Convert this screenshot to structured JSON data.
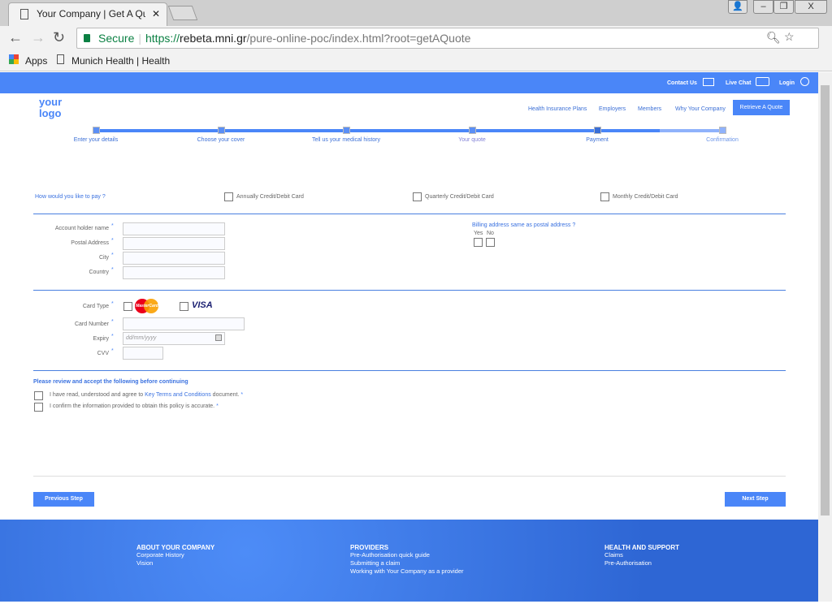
{
  "browser": {
    "tab_title": "Your Company | Get A Quote",
    "url_secure": "Secure",
    "url_scheme": "https://",
    "url_host": "rebeta.mni.gr",
    "url_path": "/pure-online-poc/index.html?root=getAQuote",
    "bookmarks": [
      "Apps",
      "Munich Health | Health"
    ]
  },
  "topbar": {
    "contact": "Contact Us",
    "chat": "Live Chat",
    "login": "Login"
  },
  "logo": {
    "line1": "your",
    "line2": "logo"
  },
  "nav": {
    "items": [
      "Health Insurance Plans",
      "Employers",
      "Members",
      "Why Your Company"
    ],
    "cta": "Retrieve A Quote"
  },
  "progress": {
    "steps": [
      "Enter your details",
      "Choose your cover",
      "Tell us your medical history",
      "Your quote",
      "Payment",
      "Confirmation"
    ],
    "current": "Payment"
  },
  "payment": {
    "question": "How would you like to pay ?",
    "options": [
      "Annually Credit/Debit Card",
      "Quarterly Credit/Debit Card",
      "Monthly Credit/Debit Card"
    ]
  },
  "address": {
    "fields": [
      "Account holder name",
      "Postal Address",
      "City",
      "Country"
    ],
    "billing_question": "Billing address same as postal address ?",
    "yes": "Yes",
    "no": "No"
  },
  "card": {
    "type_label": "Card Type",
    "mastercard": "MasterCard",
    "visa": "VISA",
    "number_label": "Card Number",
    "expiry_label": "Expiry",
    "expiry_placeholder": "dd/mm/yyyy",
    "cvv_label": "CVV"
  },
  "terms": {
    "heading": "Please review and accept the following before continuing",
    "t1_pre": "I have read, understood and agree to ",
    "t1_link": "Key Terms and Conditions",
    "t1_post": " document.",
    "t2": "I confirm the information provided to obtain this policy is accurate.",
    "required": "*"
  },
  "buttons": {
    "prev": "Previous Step",
    "next": "Next Step"
  },
  "footer": {
    "cols": [
      {
        "title": "ABOUT YOUR COMPANY",
        "links": [
          "Corporate History",
          "Vision"
        ]
      },
      {
        "title": "PROVIDERS",
        "links": [
          "Pre-Authorisation quick guide",
          "Submitting a claim",
          "Working with Your Company as a provider"
        ]
      },
      {
        "title": "HEALTH AND SUPPORT",
        "links": [
          "Claims",
          "Pre-Authorisation"
        ]
      }
    ]
  }
}
